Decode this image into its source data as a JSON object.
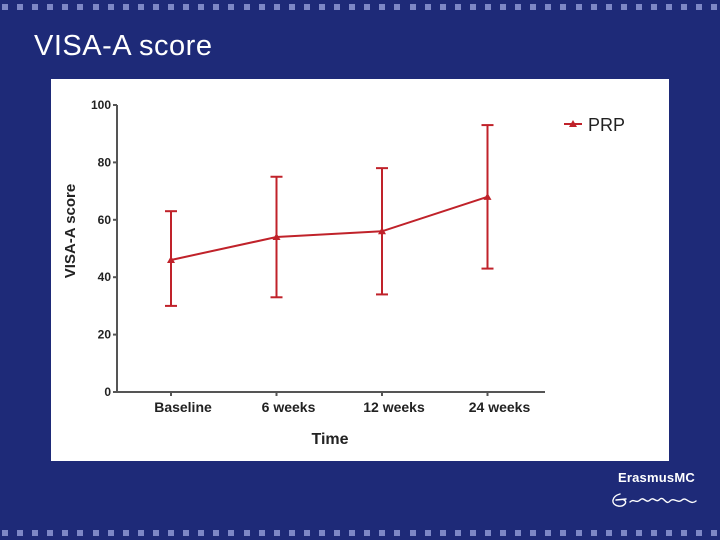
{
  "slide": {
    "title": "VISA-A score"
  },
  "logo": {
    "text": "ErasmusMC"
  },
  "colors": {
    "background": "#1e2a78",
    "border": "#7d87c6",
    "series": "#c0222a",
    "axis": "#555555"
  },
  "chart_data": {
    "type": "line",
    "title": "",
    "xlabel": "Time",
    "ylabel": "VISA-A score",
    "categories": [
      "Baseline",
      "6 weeks",
      "12 weeks",
      "24 weeks"
    ],
    "ylim": [
      0,
      100
    ],
    "yticks": [
      "0",
      "20",
      "40",
      "60",
      "80",
      "100"
    ],
    "grid": false,
    "legend": "top-right",
    "series": [
      {
        "name": "PRP",
        "values": [
          46,
          54,
          56,
          68
        ],
        "error_low": [
          30,
          33,
          34,
          43
        ],
        "error_high": [
          63,
          75,
          78,
          93
        ]
      }
    ]
  }
}
